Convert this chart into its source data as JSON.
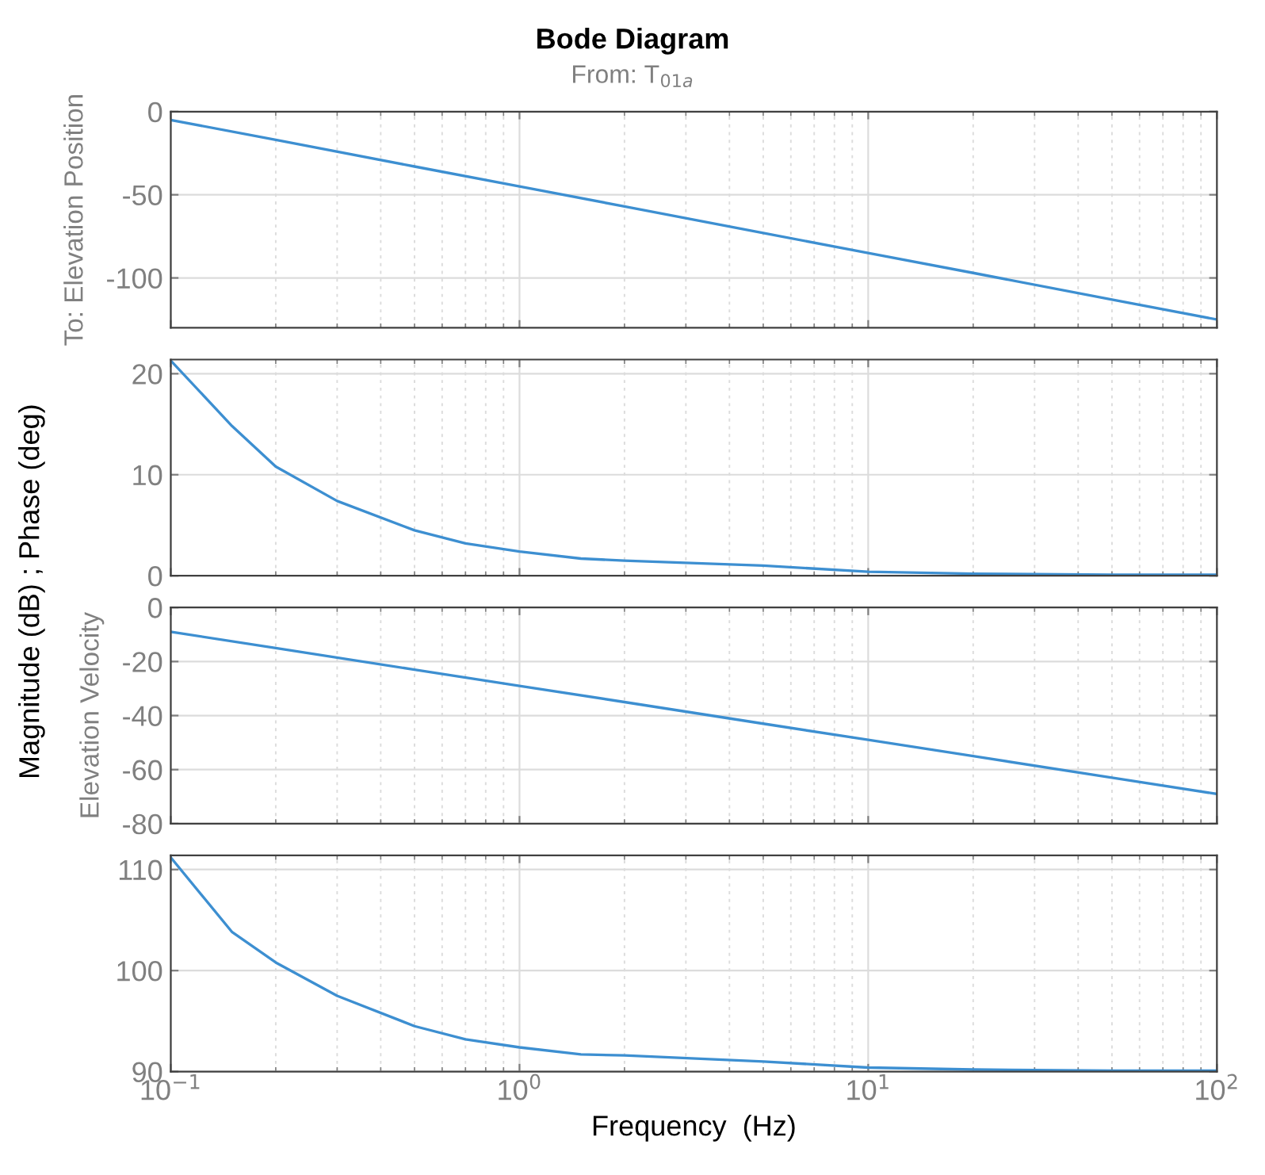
{
  "chart_data": [
    {
      "type": "line",
      "title": "Bode Diagram",
      "subtitle": "From: T$_{01a}$",
      "ylabel": "To: Elevation Position",
      "annotations": [
        "Magnitude (dB) ; Phase (deg)"
      ],
      "x": [
        0.1,
        0.2,
        0.5,
        1,
        2,
        5,
        10,
        20,
        50,
        100
      ],
      "series": [
        {
          "color": "#3d8fd1",
          "values": [
            -5,
            -17,
            -33,
            -45,
            -57,
            -73,
            -85,
            -97,
            -113,
            -125
          ]
        }
      ],
      "xlim": [
        0.1,
        100
      ],
      "ylim": [
        -130,
        0
      ],
      "yticks": [
        -100,
        -50,
        0
      ],
      "grid": true,
      "log": "x",
      "tick_labels": "y"
    },
    {
      "type": "line",
      "x": [
        0.1,
        0.15,
        0.2,
        0.3,
        0.5,
        0.7,
        1,
        1.5,
        2,
        5,
        10,
        20,
        50,
        100
      ],
      "series": [
        {
          "color": "#3d8fd1",
          "values": [
            21.3,
            14.8,
            10.8,
            7.4,
            4.5,
            3.2,
            2.4,
            1.7,
            1.5,
            1.0,
            0.4,
            0.2,
            0.1,
            0.1
          ]
        }
      ],
      "xlim": [
        0.1,
        100
      ],
      "ylim": [
        0,
        21.4
      ],
      "yticks": [
        0,
        10,
        20
      ],
      "grid": true,
      "log": "x",
      "tick_labels": "y"
    },
    {
      "type": "line",
      "ylabel": "Elevation Velocity",
      "x": [
        0.1,
        0.2,
        0.5,
        1,
        2,
        5,
        10,
        20,
        50,
        100
      ],
      "series": [
        {
          "color": "#3d8fd1",
          "values": [
            -9,
            -15,
            -23,
            -29,
            -35,
            -43,
            -49,
            -55,
            -63,
            -69
          ]
        }
      ],
      "xlim": [
        0.1,
        100
      ],
      "ylim": [
        -80,
        0
      ],
      "yticks": [
        -80,
        -60,
        -40,
        -20,
        0
      ],
      "grid": true,
      "log": "x",
      "tick_labels": "y"
    },
    {
      "type": "line",
      "xlabel": "Frequency  (Hz)",
      "x": [
        0.1,
        0.15,
        0.2,
        0.3,
        0.5,
        0.7,
        1,
        1.5,
        2,
        5,
        10,
        20,
        50,
        100
      ],
      "series": [
        {
          "color": "#3d8fd1",
          "values": [
            111.2,
            103.8,
            100.8,
            97.5,
            94.5,
            93.2,
            92.4,
            91.7,
            91.6,
            91.0,
            90.4,
            90.2,
            90.1,
            90.1
          ]
        }
      ],
      "xlim": [
        0.1,
        100
      ],
      "ylim": [
        90,
        111.4
      ],
      "yticks": [
        90,
        100,
        110
      ],
      "xticks": [
        {
          "value": 0.1,
          "label": "10$^{−1}$"
        },
        {
          "value": 1,
          "label": "10$^{0}$"
        },
        {
          "value": 10,
          "label": "10$^{1}$"
        },
        {
          "value": 100,
          "label": "10$^{2}$"
        }
      ],
      "grid": true,
      "log": "x"
    }
  ]
}
